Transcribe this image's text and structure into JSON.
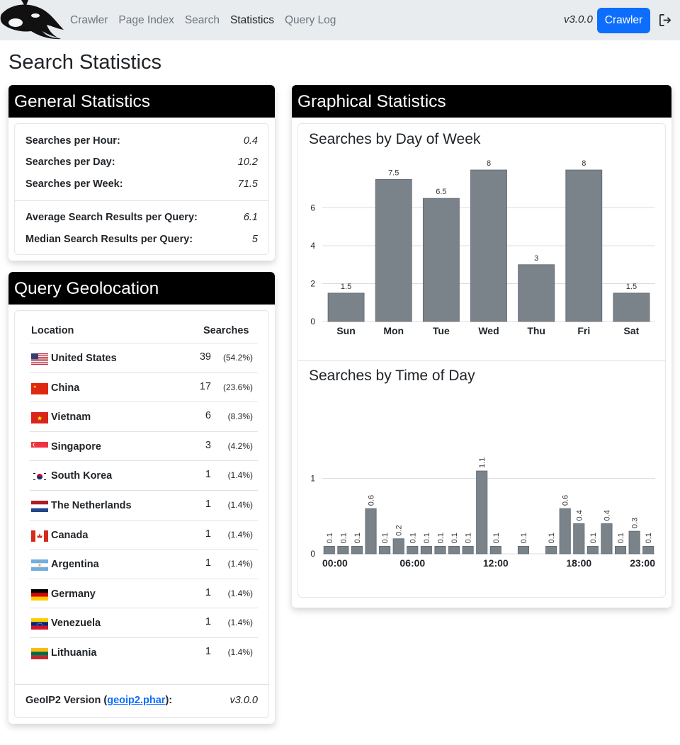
{
  "nav": {
    "links": [
      {
        "label": "Crawler",
        "active": false
      },
      {
        "label": "Page Index",
        "active": false
      },
      {
        "label": "Search",
        "active": false
      },
      {
        "label": "Statistics",
        "active": true
      },
      {
        "label": "Query Log",
        "active": false
      }
    ],
    "version": "v3.0.0",
    "crawler_button": "Crawler",
    "logout_icon": "logout-icon"
  },
  "page": {
    "title": "Search Statistics"
  },
  "general": {
    "header": "General Statistics",
    "rows": [
      {
        "label": "Searches per Hour:",
        "value": "0.4"
      },
      {
        "label": "Searches per Day:",
        "value": "10.2"
      },
      {
        "label": "Searches per Week:",
        "value": "71.5"
      },
      {
        "label": "Average Search Results per Query:",
        "value": "6.1"
      },
      {
        "label": "Median Search Results per Query:",
        "value": "5"
      }
    ]
  },
  "geo": {
    "header": "Query Geolocation",
    "col_location": "Location",
    "col_searches": "Searches",
    "rows": [
      {
        "country": "United States",
        "count": "39",
        "pct": "(54.2%)",
        "flag": "us"
      },
      {
        "country": "China",
        "count": "17",
        "pct": "(23.6%)",
        "flag": "cn"
      },
      {
        "country": "Vietnam",
        "count": "6",
        "pct": "(8.3%)",
        "flag": "vn"
      },
      {
        "country": "Singapore",
        "count": "3",
        "pct": "(4.2%)",
        "flag": "sg"
      },
      {
        "country": "South Korea",
        "count": "1",
        "pct": "(1.4%)",
        "flag": "kr"
      },
      {
        "country": "The Netherlands",
        "count": "1",
        "pct": "(1.4%)",
        "flag": "nl"
      },
      {
        "country": "Canada",
        "count": "1",
        "pct": "(1.4%)",
        "flag": "ca"
      },
      {
        "country": "Argentina",
        "count": "1",
        "pct": "(1.4%)",
        "flag": "ar"
      },
      {
        "country": "Germany",
        "count": "1",
        "pct": "(1.4%)",
        "flag": "de"
      },
      {
        "country": "Venezuela",
        "count": "1",
        "pct": "(1.4%)",
        "flag": "ve"
      },
      {
        "country": "Lithuania",
        "count": "1",
        "pct": "(1.4%)",
        "flag": "lt"
      }
    ],
    "footer_prefix": "GeoIP2 Version (",
    "footer_link": "geoip2.phar",
    "footer_suffix": "):",
    "footer_version": "v3.0.0"
  },
  "graphical": {
    "header": "Graphical Statistics"
  },
  "colors": {
    "bar": "#7a828a",
    "accent": "#0d6efd",
    "header": "#000000"
  },
  "chart_data": [
    {
      "type": "bar",
      "title": "Searches by Day of Week",
      "categories": [
        "Sun",
        "Mon",
        "Tue",
        "Wed",
        "Thu",
        "Fri",
        "Sat"
      ],
      "values": [
        1.5,
        7.5,
        6.5,
        8,
        3,
        8,
        1.5
      ],
      "value_labels": [
        "1.5",
        "7.5",
        "6.5",
        "8",
        "3",
        "8",
        "1.5"
      ],
      "yticks": [
        "0",
        "2",
        "4",
        "6"
      ],
      "ylim": [
        0,
        8
      ],
      "grid": true
    },
    {
      "type": "bar",
      "title": "Searches by Time of Day",
      "categories": [
        "00:00",
        "01:00",
        "02:00",
        "03:00",
        "04:00",
        "05:00",
        "06:00",
        "07:00",
        "08:00",
        "09:00",
        "10:00",
        "11:00",
        "12:00",
        "13:00",
        "14:00",
        "15:00",
        "16:00",
        "17:00",
        "18:00",
        "19:00",
        "20:00",
        "21:00",
        "22:00",
        "23:00"
      ],
      "values": [
        0.1,
        0.1,
        0.1,
        0.6,
        0.1,
        0.2,
        0.1,
        0.1,
        0.1,
        0.1,
        0.1,
        1.1,
        0.1,
        0,
        0.1,
        0,
        0.1,
        0.6,
        0.4,
        0.1,
        0.4,
        0.1,
        0.3,
        0.1
      ],
      "value_labels": [
        "0.1",
        "0.1",
        "0.1",
        "0.6",
        "0.1",
        "0.2",
        "0.1",
        "0.1",
        "0.1",
        "0.1",
        "0.1",
        "1.1",
        "0.1",
        "",
        "0.1",
        "",
        "0.1",
        "0.6",
        "0.4",
        "0.1",
        "0.4",
        "0.1",
        "0.3",
        "0.1"
      ],
      "xtick_labels": [
        "00:00",
        "06:00",
        "12:00",
        "18:00",
        "23:00"
      ],
      "yticks": [
        "0",
        "1"
      ],
      "ylim": [
        0,
        1.1
      ],
      "grid": true
    }
  ]
}
